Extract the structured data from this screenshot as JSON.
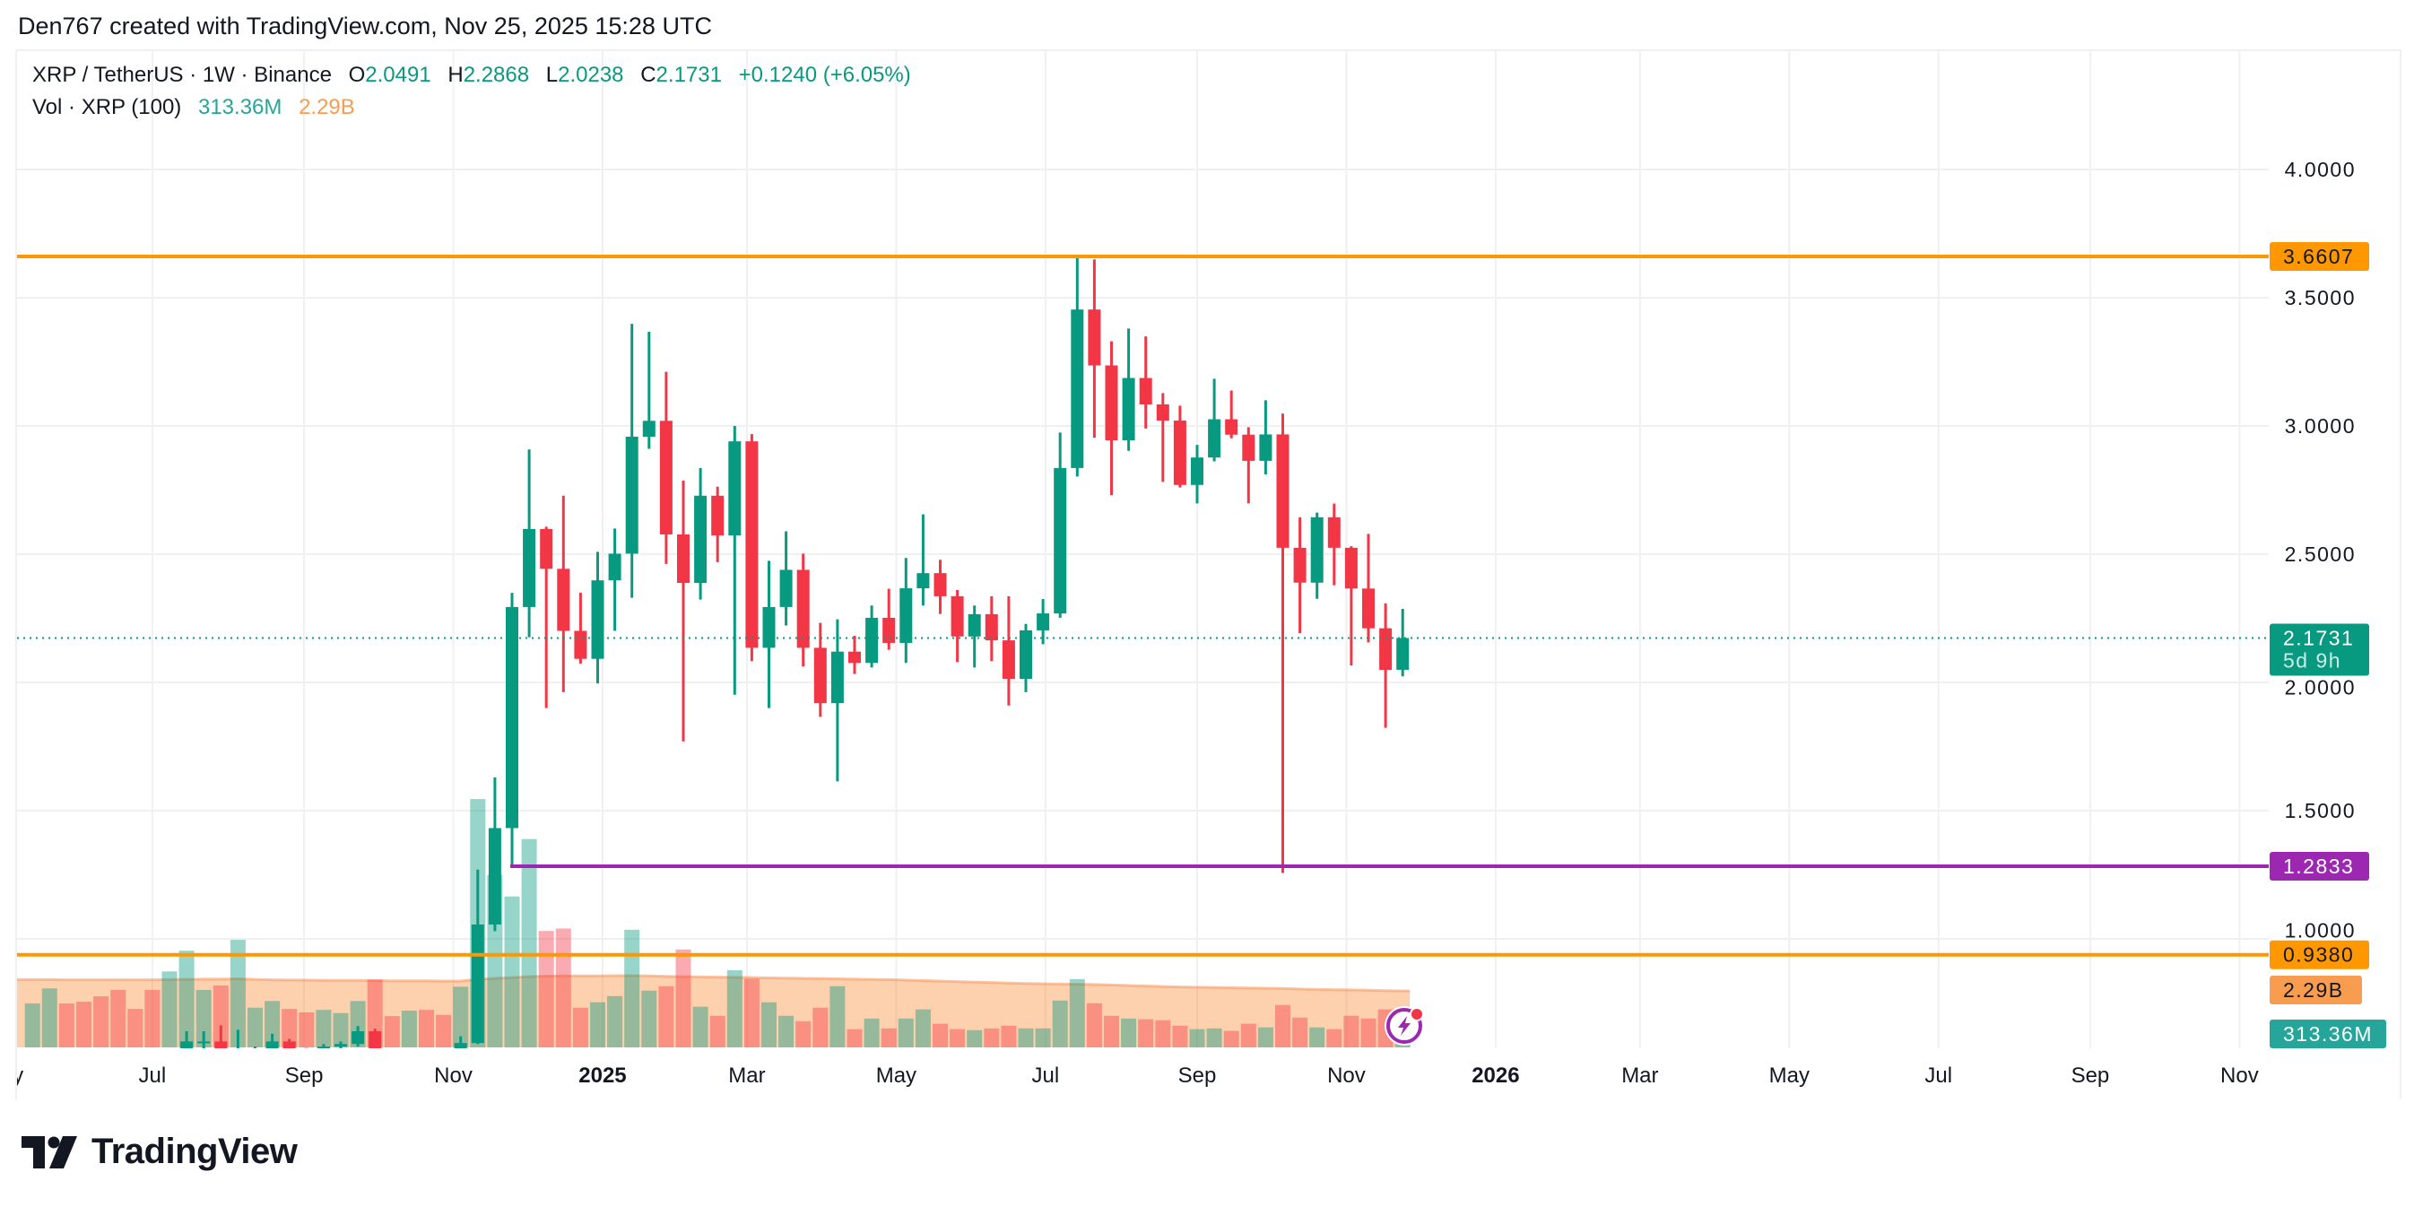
{
  "attribution": "Den767 created with TradingView.com, Nov 25, 2025 15:28 UTC",
  "legend": {
    "symbol": "XRP / TetherUS · 1W · Binance",
    "o_label": "O",
    "o": "2.0491",
    "h_label": "H",
    "h": "2.2868",
    "l_label": "L",
    "l": "2.0238",
    "c_label": "C",
    "c": "2.1731",
    "change": "+0.1240 (+6.05%)",
    "vol_label": "Vol · XRP (100)",
    "vol": "313.36M",
    "vol_ma": "2.29B"
  },
  "logo": {
    "text": "TradingView",
    "icon": "tradingview-logo-icon"
  },
  "colors": {
    "up": "#089981",
    "down": "#F23645",
    "resistance": "#FF9800",
    "support": "#9C27B0",
    "vol_ma": "#F89C50",
    "vol_label": "#26A69A"
  },
  "chart_data": {
    "type": "candlestick",
    "symbol": "XRP / TetherUS",
    "interval": "1W",
    "exchange": "Binance",
    "grid": true,
    "price_axis_ticks": [
      {
        "value": 4.0,
        "label": "4.0000"
      },
      {
        "value": 3.5,
        "label": "3.5000"
      },
      {
        "value": 3.0,
        "label": "3.0000"
      },
      {
        "value": 2.5,
        "label": "2.5000"
      },
      {
        "value": 2.0,
        "label": "2.0000"
      },
      {
        "value": 1.5,
        "label": "1.5000"
      },
      {
        "value": 1.0,
        "label": "1.0000"
      }
    ],
    "time_axis_ticks": [
      {
        "date": "2024-05-01",
        "label": "May",
        "bold": false
      },
      {
        "date": "2024-07-01",
        "label": "Jul",
        "bold": false
      },
      {
        "date": "2024-09-01",
        "label": "Sep",
        "bold": false
      },
      {
        "date": "2024-11-01",
        "label": "Nov",
        "bold": false
      },
      {
        "date": "2025-01-01",
        "label": "2025",
        "bold": true
      },
      {
        "date": "2025-03-01",
        "label": "Mar",
        "bold": false
      },
      {
        "date": "2025-05-01",
        "label": "May",
        "bold": false
      },
      {
        "date": "2025-07-01",
        "label": "Jul",
        "bold": false
      },
      {
        "date": "2025-09-01",
        "label": "Sep",
        "bold": false
      },
      {
        "date": "2025-11-01",
        "label": "Nov",
        "bold": false
      },
      {
        "date": "2026-01-01",
        "label": "2026",
        "bold": true
      },
      {
        "date": "2026-03-01",
        "label": "Mar",
        "bold": false
      },
      {
        "date": "2026-05-01",
        "label": "May",
        "bold": false
      },
      {
        "date": "2026-07-01",
        "label": "Jul",
        "bold": false
      },
      {
        "date": "2026-09-01",
        "label": "Sep",
        "bold": false
      },
      {
        "date": "2026-11-01",
        "label": "Nov",
        "bold": false
      }
    ],
    "horizontal_lines": [
      {
        "price": 3.6607,
        "label": "3.6607",
        "color": "#FF9800",
        "from_date": null
      },
      {
        "price": 1.2833,
        "label": "1.2833",
        "color": "#9C27B0",
        "from_date": "2024-11-25"
      },
      {
        "price": 0.938,
        "label": "0.9380",
        "color": "#FF9800",
        "from_date": null
      }
    ],
    "last_price": {
      "price": 2.1731,
      "label": "2.1731",
      "countdown": "5d 9h",
      "color": "#089981"
    },
    "volume_labels": [
      {
        "label": "2.29B",
        "value_billions": 2.29,
        "color": "#F89C50",
        "text_color": "#131722"
      },
      {
        "label": "313.36M",
        "value_billions": 0.31336,
        "color": "#26A69A",
        "text_color": "#ffffff"
      }
    ],
    "candle_fields": [
      "date",
      "open",
      "high",
      "low",
      "close",
      "volume_billions"
    ],
    "candles": [
      [
        "2024-05-13",
        0.49,
        0.53,
        0.48,
        0.52,
        1.78
      ],
      [
        "2024-05-20",
        0.52,
        0.54,
        0.51,
        0.53,
        2.39
      ],
      [
        "2024-05-27",
        0.53,
        0.54,
        0.5,
        0.5,
        1.78
      ],
      [
        "2024-06-03",
        0.5,
        0.52,
        0.49,
        0.49,
        1.85
      ],
      [
        "2024-06-10",
        0.49,
        0.51,
        0.46,
        0.48,
        2.07
      ],
      [
        "2024-06-17",
        0.48,
        0.5,
        0.47,
        0.475,
        2.33
      ],
      [
        "2024-06-24",
        0.475,
        0.49,
        0.46,
        0.47,
        1.56
      ],
      [
        "2024-07-01",
        0.47,
        0.48,
        0.38,
        0.44,
        2.33
      ],
      [
        "2024-07-08",
        0.44,
        0.55,
        0.43,
        0.54,
        3.08
      ],
      [
        "2024-07-15",
        0.54,
        0.64,
        0.53,
        0.6,
        3.92
      ],
      [
        "2024-07-22",
        0.595,
        0.64,
        0.57,
        0.6,
        2.33
      ],
      [
        "2024-07-29",
        0.6,
        0.663,
        0.52,
        0.55,
        2.51
      ],
      [
        "2024-08-05",
        0.5,
        0.646,
        0.43,
        0.56,
        4.36
      ],
      [
        "2024-08-12",
        0.56,
        0.58,
        0.55,
        0.57,
        1.61
      ],
      [
        "2024-08-19",
        0.57,
        0.63,
        0.55,
        0.6,
        1.88
      ],
      [
        "2024-08-26",
        0.6,
        0.61,
        0.56,
        0.57,
        1.56
      ],
      [
        "2024-09-02",
        0.57,
        0.575,
        0.53,
        0.56,
        1.42
      ],
      [
        "2024-09-09",
        0.56,
        0.59,
        0.54,
        0.58,
        1.52
      ],
      [
        "2024-09-16",
        0.58,
        0.6,
        0.57,
        0.59,
        1.39
      ],
      [
        "2024-09-23",
        0.59,
        0.66,
        0.58,
        0.64,
        1.88
      ],
      [
        "2024-09-30",
        0.64,
        0.65,
        0.5,
        0.53,
        2.75
      ],
      [
        "2024-10-07",
        0.535,
        0.55,
        0.52,
        0.53,
        1.27
      ],
      [
        "2024-10-14",
        0.53,
        0.56,
        0.52,
        0.55,
        1.49
      ],
      [
        "2024-10-21",
        0.55,
        0.56,
        0.53,
        0.54,
        1.52
      ],
      [
        "2024-10-28",
        0.54,
        0.55,
        0.5,
        0.51,
        1.32
      ],
      [
        "2024-11-04",
        0.51,
        0.62,
        0.5,
        0.594,
        2.46
      ],
      [
        "2024-11-11",
        0.594,
        1.27,
        0.59,
        1.056,
        10.07
      ],
      [
        "2024-11-18",
        1.056,
        1.63,
        1.03,
        1.432,
        6.99
      ],
      [
        "2024-11-25",
        1.432,
        2.349,
        1.286,
        2.294,
        6.12
      ],
      [
        "2024-12-02",
        2.294,
        2.908,
        2.176,
        2.598,
        8.45
      ],
      [
        "2024-12-09",
        2.598,
        2.607,
        1.9,
        2.443,
        4.72
      ],
      [
        "2024-12-16",
        2.443,
        2.728,
        1.962,
        2.201,
        4.82
      ],
      [
        "2024-12-23",
        2.201,
        2.35,
        2.073,
        2.092,
        1.61
      ],
      [
        "2024-12-30",
        2.092,
        2.509,
        1.996,
        2.398,
        1.83
      ],
      [
        "2025-01-06",
        2.398,
        2.6,
        2.201,
        2.502,
        2.08
      ],
      [
        "2025-01-13",
        2.502,
        3.398,
        2.33,
        2.958,
        4.77
      ],
      [
        "2025-01-20",
        2.958,
        3.367,
        2.911,
        3.02,
        2.3
      ],
      [
        "2025-01-27",
        3.02,
        3.211,
        2.462,
        2.577,
        2.48
      ],
      [
        "2025-02-03",
        2.577,
        2.787,
        1.77,
        2.388,
        3.97
      ],
      [
        "2025-02-10",
        2.388,
        2.836,
        2.323,
        2.728,
        1.65
      ],
      [
        "2025-02-17",
        2.728,
        2.763,
        2.469,
        2.573,
        1.28
      ],
      [
        "2025-02-24",
        2.573,
        3.0,
        1.952,
        2.94,
        3.13
      ],
      [
        "2025-03-03",
        2.94,
        2.968,
        2.083,
        2.135,
        2.78
      ],
      [
        "2025-03-10",
        2.135,
        2.474,
        1.9,
        2.294,
        1.83
      ],
      [
        "2025-03-17",
        2.294,
        2.589,
        2.222,
        2.439,
        1.28
      ],
      [
        "2025-03-24",
        2.439,
        2.502,
        2.062,
        2.135,
        1.06
      ],
      [
        "2025-03-31",
        2.135,
        2.232,
        1.866,
        1.919,
        1.61
      ],
      [
        "2025-04-07",
        1.919,
        2.246,
        1.614,
        2.12,
        2.48
      ],
      [
        "2025-04-14",
        2.12,
        2.182,
        2.033,
        2.076,
        0.74
      ],
      [
        "2025-04-21",
        2.076,
        2.3,
        2.058,
        2.252,
        1.17
      ],
      [
        "2025-04-28",
        2.252,
        2.365,
        2.127,
        2.154,
        0.77
      ],
      [
        "2025-05-05",
        2.154,
        2.485,
        2.076,
        2.367,
        1.17
      ],
      [
        "2025-05-12",
        2.367,
        2.655,
        2.3,
        2.426,
        1.54
      ],
      [
        "2025-05-19",
        2.426,
        2.478,
        2.267,
        2.336,
        0.96
      ],
      [
        "2025-05-26",
        2.336,
        2.36,
        2.079,
        2.179,
        0.74
      ],
      [
        "2025-06-02",
        2.179,
        2.3,
        2.058,
        2.266,
        0.7
      ],
      [
        "2025-06-09",
        2.266,
        2.336,
        2.083,
        2.164,
        0.77
      ],
      [
        "2025-06-16",
        2.164,
        2.336,
        1.91,
        2.014,
        0.88
      ],
      [
        "2025-06-23",
        2.014,
        2.228,
        1.962,
        2.203,
        0.77
      ],
      [
        "2025-06-30",
        2.203,
        2.325,
        2.149,
        2.269,
        0.77
      ],
      [
        "2025-07-07",
        2.269,
        2.974,
        2.252,
        2.836,
        1.9
      ],
      [
        "2025-07-14",
        2.836,
        3.659,
        2.803,
        3.454,
        2.77
      ],
      [
        "2025-07-21",
        3.454,
        3.649,
        2.954,
        3.236,
        1.79
      ],
      [
        "2025-07-28",
        3.236,
        3.33,
        2.73,
        2.944,
        1.28
      ],
      [
        "2025-08-04",
        2.944,
        3.38,
        2.903,
        3.187,
        1.17
      ],
      [
        "2025-08-11",
        3.187,
        3.349,
        2.99,
        3.084,
        1.14
      ],
      [
        "2025-08-18",
        3.084,
        3.128,
        2.782,
        3.021,
        1.1
      ],
      [
        "2025-08-25",
        3.021,
        3.079,
        2.76,
        2.77,
        0.88
      ],
      [
        "2025-09-01",
        2.77,
        2.926,
        2.698,
        2.877,
        0.74
      ],
      [
        "2025-09-08",
        2.877,
        3.184,
        2.862,
        3.026,
        0.77
      ],
      [
        "2025-09-15",
        3.026,
        3.138,
        2.952,
        2.966,
        0.67
      ],
      [
        "2025-09-22",
        2.966,
        2.995,
        2.698,
        2.864,
        0.96
      ],
      [
        "2025-09-29",
        2.864,
        3.1,
        2.811,
        2.967,
        0.81
      ],
      [
        "2025-10-06",
        2.967,
        3.048,
        1.257,
        2.525,
        1.72
      ],
      [
        "2025-10-13",
        2.525,
        2.644,
        2.192,
        2.389,
        1.21
      ],
      [
        "2025-10-20",
        2.389,
        2.662,
        2.326,
        2.644,
        0.81
      ],
      [
        "2025-10-27",
        2.644,
        2.697,
        2.379,
        2.525,
        0.74
      ],
      [
        "2025-11-03",
        2.525,
        2.531,
        2.066,
        2.366,
        1.28
      ],
      [
        "2025-11-10",
        2.366,
        2.579,
        2.156,
        2.211,
        1.17
      ],
      [
        "2025-11-17",
        2.211,
        2.308,
        1.823,
        2.049,
        1.54
      ],
      [
        "2025-11-24",
        2.0491,
        2.2868,
        2.0238,
        2.1731,
        0.31336
      ]
    ],
    "volume_ma_period": 100,
    "volume_ma_billions": [
      2.75,
      2.75,
      2.74,
      2.74,
      2.74,
      2.74,
      2.74,
      2.74,
      2.75,
      2.76,
      2.77,
      2.77,
      2.78,
      2.76,
      2.74,
      2.73,
      2.73,
      2.72,
      2.72,
      2.72,
      2.71,
      2.7,
      2.7,
      2.7,
      2.69,
      2.69,
      2.76,
      2.8,
      2.83,
      2.87,
      2.89,
      2.9,
      2.9,
      2.9,
      2.91,
      2.91,
      2.9,
      2.88,
      2.87,
      2.86,
      2.85,
      2.84,
      2.83,
      2.82,
      2.81,
      2.8,
      2.79,
      2.78,
      2.77,
      2.76,
      2.75,
      2.73,
      2.71,
      2.69,
      2.67,
      2.65,
      2.63,
      2.61,
      2.59,
      2.58,
      2.57,
      2.56,
      2.55,
      2.53,
      2.51,
      2.49,
      2.47,
      2.45,
      2.44,
      2.43,
      2.42,
      2.41,
      2.4,
      2.39,
      2.37,
      2.35,
      2.34,
      2.33,
      2.32,
      2.3,
      2.29
    ]
  }
}
